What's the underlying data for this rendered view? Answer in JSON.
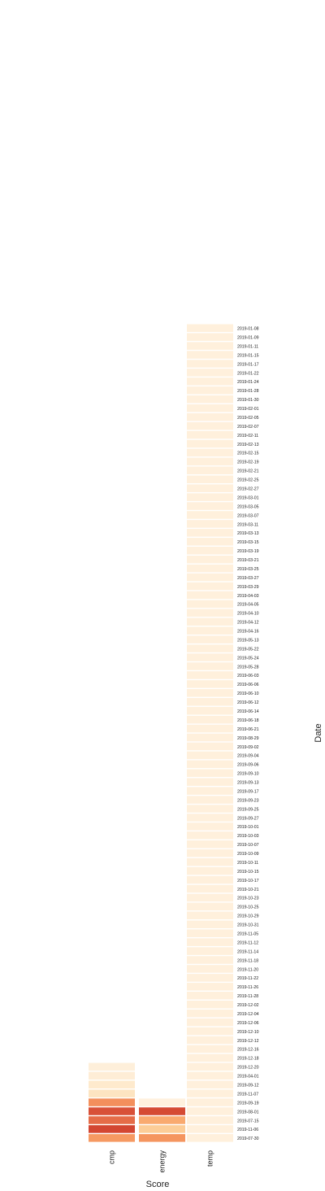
{
  "chart_data": {
    "type": "heatmap",
    "title": "",
    "xlabel": "Score",
    "ylabel": "Date",
    "categories": [
      "cmp",
      "energy",
      "temp"
    ],
    "dates": [
      "2019-01-08",
      "2019-01-09",
      "2019-01-11",
      "2019-01-15",
      "2019-01-17",
      "2019-01-22",
      "2019-01-24",
      "2019-01-28",
      "2019-01-30",
      "2019-02-01",
      "2019-02-05",
      "2019-02-07",
      "2019-02-11",
      "2019-02-13",
      "2019-02-15",
      "2019-02-19",
      "2019-02-21",
      "2019-02-25",
      "2019-02-27",
      "2019-03-01",
      "2019-03-05",
      "2019-03-07",
      "2019-03-11",
      "2019-03-13",
      "2019-03-15",
      "2019-03-19",
      "2019-03-21",
      "2019-03-25",
      "2019-03-27",
      "2019-03-29",
      "2019-04-03",
      "2019-04-05",
      "2019-04-10",
      "2019-04-12",
      "2019-04-16",
      "2019-05-13",
      "2019-05-22",
      "2019-05-24",
      "2019-05-28",
      "2019-06-03",
      "2019-06-06",
      "2019-06-10",
      "2019-06-12",
      "2019-06-14",
      "2019-06-18",
      "2019-06-21",
      "2019-08-29",
      "2019-09-02",
      "2019-09-04",
      "2019-09-06",
      "2019-09-10",
      "2019-09-13",
      "2019-09-17",
      "2019-09-23",
      "2019-09-25",
      "2019-09-27",
      "2019-10-01",
      "2019-10-03",
      "2019-10-07",
      "2019-10-09",
      "2019-10-11",
      "2019-10-15",
      "2019-10-17",
      "2019-10-21",
      "2019-10-23",
      "2019-10-25",
      "2019-10-29",
      "2019-10-31",
      "2019-11-05",
      "2019-11-12",
      "2019-11-14",
      "2019-11-18",
      "2019-11-20",
      "2019-11-22",
      "2019-11-26",
      "2019-11-28",
      "2019-12-02",
      "2019-12-04",
      "2019-12-06",
      "2019-12-10",
      "2019-12-12",
      "2019-12-16",
      "2019-12-18",
      "2019-12-20",
      "2019-04-01",
      "2019-09-12",
      "2019-11-07",
      "2019-09-19",
      "2019-08-01",
      "2019-07-15",
      "2019-11-06",
      "2019-07-30"
    ],
    "series": [
      {
        "category": "cmp",
        "values": [
          null,
          null,
          null,
          null,
          null,
          null,
          null,
          null,
          null,
          null,
          null,
          null,
          null,
          null,
          null,
          null,
          null,
          null,
          null,
          null,
          null,
          null,
          null,
          null,
          null,
          null,
          null,
          null,
          null,
          null,
          null,
          null,
          null,
          null,
          null,
          null,
          null,
          null,
          null,
          null,
          null,
          null,
          null,
          null,
          null,
          null,
          null,
          null,
          null,
          null,
          null,
          null,
          null,
          null,
          null,
          null,
          null,
          null,
          null,
          null,
          null,
          null,
          null,
          null,
          null,
          null,
          null,
          null,
          null,
          null,
          null,
          null,
          null,
          null,
          null,
          null,
          null,
          null,
          null,
          null,
          null,
          null,
          null,
          0.06,
          0.08,
          0.12,
          0.18,
          0.62,
          0.85,
          0.74,
          0.9,
          0.58
        ]
      },
      {
        "category": "energy",
        "values": [
          null,
          null,
          null,
          null,
          null,
          null,
          null,
          null,
          null,
          null,
          null,
          null,
          null,
          null,
          null,
          null,
          null,
          null,
          null,
          null,
          null,
          null,
          null,
          null,
          null,
          null,
          null,
          null,
          null,
          null,
          null,
          null,
          null,
          null,
          null,
          null,
          null,
          null,
          null,
          null,
          null,
          null,
          null,
          null,
          null,
          null,
          null,
          null,
          null,
          null,
          null,
          null,
          null,
          null,
          null,
          null,
          null,
          null,
          null,
          null,
          null,
          null,
          null,
          null,
          null,
          null,
          null,
          null,
          null,
          null,
          null,
          null,
          null,
          null,
          null,
          null,
          null,
          null,
          null,
          null,
          null,
          null,
          null,
          null,
          null,
          null,
          null,
          0.04,
          0.88,
          0.5,
          0.32,
          0.6
        ]
      },
      {
        "category": "temp",
        "values": [
          0.05,
          0.05,
          0.05,
          0.05,
          0.05,
          0.05,
          0.05,
          0.05,
          0.05,
          0.05,
          0.05,
          0.05,
          0.05,
          0.05,
          0.05,
          0.05,
          0.05,
          0.05,
          0.05,
          0.05,
          0.05,
          0.05,
          0.05,
          0.05,
          0.05,
          0.05,
          0.05,
          0.05,
          0.05,
          0.05,
          0.05,
          0.05,
          0.05,
          0.05,
          0.05,
          0.05,
          0.05,
          0.05,
          0.05,
          0.05,
          0.05,
          0.05,
          0.05,
          0.05,
          0.05,
          0.05,
          0.05,
          0.05,
          0.05,
          0.05,
          0.05,
          0.05,
          0.05,
          0.05,
          0.05,
          0.05,
          0.05,
          0.05,
          0.05,
          0.05,
          0.05,
          0.05,
          0.05,
          0.05,
          0.05,
          0.05,
          0.05,
          0.05,
          0.05,
          0.05,
          0.05,
          0.05,
          0.05,
          0.05,
          0.05,
          0.05,
          0.05,
          0.05,
          0.05,
          0.05,
          0.05,
          0.05,
          0.05,
          0.05,
          0.05,
          0.05,
          0.05,
          0.05,
          0.05,
          0.05,
          0.05,
          0.05
        ]
      }
    ],
    "color_scale": [
      "#fff5e6",
      "#fde2bd",
      "#fcbf80",
      "#f5955f",
      "#de5a3e",
      "#c73125"
    ],
    "grid": false,
    "legend": "none"
  }
}
